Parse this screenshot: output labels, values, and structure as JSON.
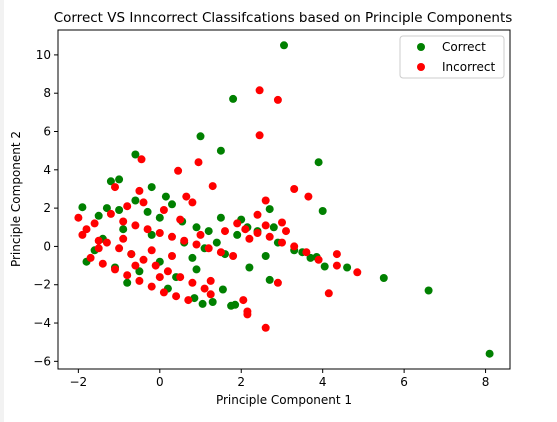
{
  "chart_data": {
    "type": "scatter",
    "title": "Correct VS Inncorrect Classifcations based on Principle Components",
    "xlabel": "Principle Component 1",
    "ylabel": "Principle Component 2",
    "xlim": [
      -2.5,
      8.6
    ],
    "ylim": [
      -6.4,
      11.3
    ],
    "xticks": [
      -2,
      0,
      2,
      4,
      6,
      8
    ],
    "yticks": [
      -6,
      -4,
      -2,
      0,
      2,
      4,
      6,
      8,
      10
    ],
    "grid": false,
    "legend_position": "top-right",
    "series": [
      {
        "name": "Correct",
        "color": "#008000",
        "points": [
          [
            3.05,
            10.5
          ],
          [
            1.8,
            7.7
          ],
          [
            1.0,
            5.75
          ],
          [
            1.5,
            5.0
          ],
          [
            3.9,
            4.4
          ],
          [
            -0.6,
            4.8
          ],
          [
            -1.2,
            3.4
          ],
          [
            -0.2,
            3.1
          ],
          [
            -1.0,
            3.5
          ],
          [
            4.0,
            1.85
          ],
          [
            2.7,
            1.95
          ],
          [
            -1.9,
            2.05
          ],
          [
            6.6,
            -2.3
          ],
          [
            5.5,
            -1.65
          ],
          [
            8.1,
            -5.6
          ],
          [
            1.3,
            -2.9
          ],
          [
            1.55,
            -2.25
          ],
          [
            1.85,
            -3.05
          ],
          [
            1.75,
            -3.1
          ],
          [
            1.05,
            -3.0
          ],
          [
            2.7,
            -1.75
          ],
          [
            4.6,
            -1.1
          ],
          [
            4.05,
            -1.05
          ],
          [
            0.85,
            -2.7
          ],
          [
            -0.6,
            2.4
          ],
          [
            0.3,
            2.2
          ],
          [
            0.15,
            2.6
          ],
          [
            0.55,
            1.3
          ],
          [
            -1.5,
            1.6
          ],
          [
            -1.3,
            2.0
          ],
          [
            -0.9,
            0.9
          ],
          [
            -0.3,
            1.8
          ],
          [
            0.8,
            -0.6
          ],
          [
            1.2,
            0.8
          ],
          [
            1.5,
            1.5
          ],
          [
            2.15,
            1.0
          ],
          [
            2.4,
            0.8
          ],
          [
            2.9,
            0.2
          ],
          [
            3.3,
            -0.2
          ],
          [
            3.7,
            -0.6
          ],
          [
            0.0,
            -0.8
          ],
          [
            -0.5,
            -1.3
          ],
          [
            -1.6,
            -0.2
          ],
          [
            -1.1,
            -1.1
          ],
          [
            0.4,
            -1.6
          ],
          [
            0.9,
            -1.2
          ],
          [
            1.6,
            -0.4
          ],
          [
            2.2,
            -1.1
          ],
          [
            2.6,
            -0.5
          ],
          [
            -1.8,
            -0.8
          ],
          [
            -0.8,
            -1.9
          ],
          [
            0.2,
            -2.2
          ],
          [
            1.4,
            0.2
          ],
          [
            2.0,
            1.4
          ],
          [
            3.5,
            -0.3
          ],
          [
            3.85,
            -0.55
          ],
          [
            -1.4,
            0.4
          ],
          [
            -0.2,
            0.6
          ],
          [
            0.6,
            0.2
          ],
          [
            -0.7,
            -0.4
          ],
          [
            1.9,
            0.6
          ],
          [
            2.8,
            1.0
          ],
          [
            1.1,
            -0.1
          ],
          [
            -1.0,
            1.9
          ],
          [
            0.0,
            1.5
          ],
          [
            0.9,
            1.0
          ]
        ]
      },
      {
        "name": "Incorrect",
        "color": "#ff0000",
        "points": [
          [
            2.45,
            8.15
          ],
          [
            2.9,
            7.65
          ],
          [
            2.45,
            5.8
          ],
          [
            -0.45,
            4.55
          ],
          [
            0.95,
            4.4
          ],
          [
            0.45,
            3.95
          ],
          [
            1.3,
            3.15
          ],
          [
            3.3,
            3.0
          ],
          [
            3.65,
            2.6
          ],
          [
            -1.1,
            3.1
          ],
          [
            0.65,
            2.6
          ],
          [
            0.8,
            2.3
          ],
          [
            2.6,
            2.4
          ],
          [
            -0.5,
            2.9
          ],
          [
            2.4,
            1.65
          ],
          [
            3.0,
            1.25
          ],
          [
            2.6,
            -4.25
          ],
          [
            2.15,
            -3.4
          ],
          [
            2.15,
            -3.55
          ],
          [
            2.05,
            -2.8
          ],
          [
            1.25,
            -2.5
          ],
          [
            1.25,
            -1.8
          ],
          [
            2.9,
            -1.9
          ],
          [
            4.15,
            -2.45
          ],
          [
            4.35,
            -0.4
          ],
          [
            4.35,
            -1.0
          ],
          [
            4.85,
            -1.35
          ],
          [
            3.9,
            -0.7
          ],
          [
            -2.0,
            1.5
          ],
          [
            -1.8,
            0.9
          ],
          [
            -1.5,
            0.3
          ],
          [
            -1.2,
            1.7
          ],
          [
            -0.9,
            1.3
          ],
          [
            -0.6,
            1.1
          ],
          [
            -0.3,
            0.9
          ],
          [
            0.0,
            0.7
          ],
          [
            0.3,
            0.5
          ],
          [
            0.6,
            0.3
          ],
          [
            0.9,
            0.1
          ],
          [
            1.2,
            -0.1
          ],
          [
            1.5,
            -0.3
          ],
          [
            1.8,
            -0.5
          ],
          [
            2.1,
            0.9
          ],
          [
            2.4,
            0.7
          ],
          [
            2.7,
            0.5
          ],
          [
            3.0,
            0.2
          ],
          [
            3.3,
            0.0
          ],
          [
            3.6,
            -0.3
          ],
          [
            -1.7,
            -0.6
          ],
          [
            -1.4,
            -0.9
          ],
          [
            -1.1,
            -1.2
          ],
          [
            -0.8,
            -1.5
          ],
          [
            -0.5,
            -1.8
          ],
          [
            -0.2,
            -2.1
          ],
          [
            0.1,
            -2.4
          ],
          [
            0.4,
            -2.6
          ],
          [
            0.7,
            -2.8
          ],
          [
            -1.3,
            0.2
          ],
          [
            -1.0,
            -0.1
          ],
          [
            -0.7,
            -0.4
          ],
          [
            -0.4,
            -0.7
          ],
          [
            -0.1,
            -1.0
          ],
          [
            0.2,
            -1.3
          ],
          [
            0.5,
            -1.6
          ],
          [
            0.8,
            -1.9
          ],
          [
            1.1,
            -2.2
          ],
          [
            -0.8,
            2.1
          ],
          [
            -0.4,
            2.3
          ],
          [
            0.1,
            1.9
          ],
          [
            0.5,
            1.4
          ],
          [
            1.0,
            0.6
          ],
          [
            1.6,
            0.8
          ],
          [
            -1.6,
            1.2
          ],
          [
            -1.9,
            0.6
          ],
          [
            -1.5,
            -0.1
          ],
          [
            -0.2,
            -0.2
          ],
          [
            0.3,
            -0.5
          ],
          [
            2.2,
            0.4
          ],
          [
            2.6,
            1.1
          ],
          [
            1.9,
            1.2
          ],
          [
            3.1,
            0.8
          ],
          [
            -0.9,
            0.4
          ],
          [
            -0.6,
            -1.0
          ],
          [
            0.0,
            -1.6
          ]
        ]
      }
    ]
  }
}
